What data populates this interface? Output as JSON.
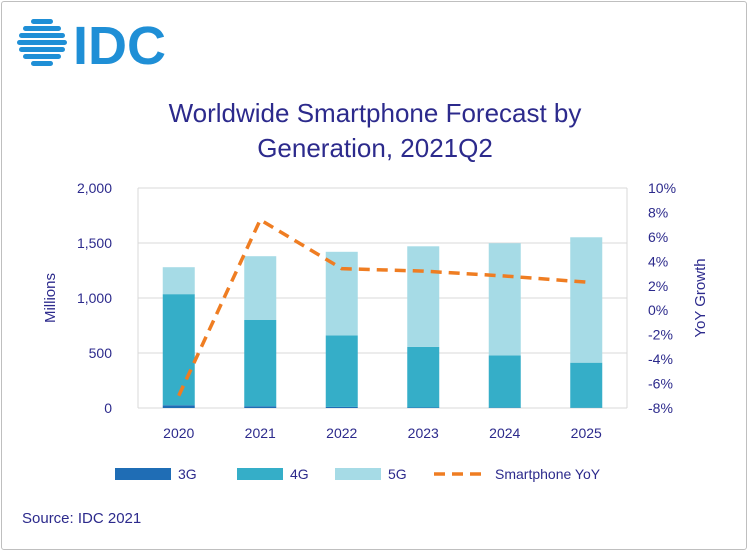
{
  "brand": {
    "logo_text": "IDC",
    "logo_color": "#1f8fd6"
  },
  "chart_data": {
    "type": "bar",
    "title_line1": "Worldwide Smartphone Forecast by",
    "title_line2": "Generation, 2021Q2",
    "categories": [
      "2020",
      "2021",
      "2022",
      "2023",
      "2024",
      "2025"
    ],
    "stacked": true,
    "series": [
      {
        "name": "3G",
        "values": [
          25,
          15,
          10,
          5,
          3,
          2
        ],
        "color": "#1f6db5"
      },
      {
        "name": "4G",
        "values": [
          1010,
          785,
          650,
          550,
          475,
          410
        ],
        "color": "#35aec8"
      },
      {
        "name": "5G",
        "values": [
          245,
          580,
          760,
          915,
          1020,
          1140
        ],
        "color": "#a6dbe6"
      }
    ],
    "line_series": {
      "name": "Smartphone YoY",
      "values": [
        -7.0,
        7.4,
        3.4,
        3.2,
        2.8,
        2.3
      ],
      "color": "#ef7d22",
      "axis": "right"
    },
    "ylabel": "Millions",
    "y2label": "YoY Growth",
    "ylim": [
      0,
      2000
    ],
    "y2lim": [
      -8,
      10
    ],
    "yticks": [
      "0",
      "500",
      "1,000",
      "1,500",
      "2,000"
    ],
    "y2ticks": [
      "-8%",
      "-6%",
      "-4%",
      "-2%",
      "0%",
      "2%",
      "4%",
      "6%",
      "8%",
      "10%"
    ],
    "grid": true,
    "legend_position": "bottom",
    "source": "Source: IDC 2021"
  }
}
